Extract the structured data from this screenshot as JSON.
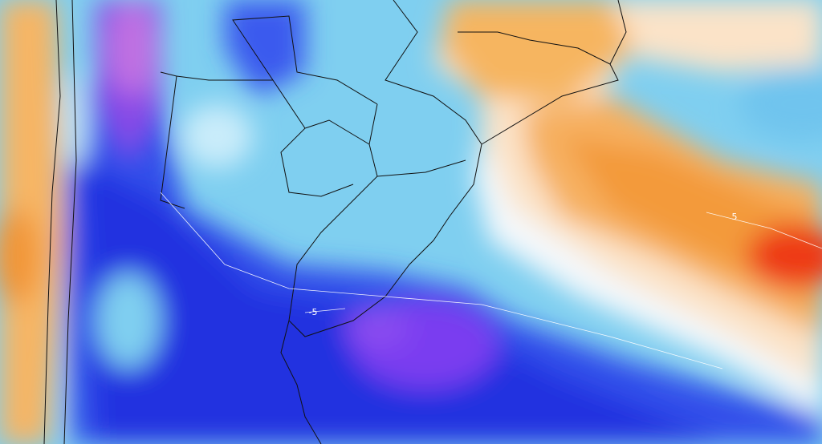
{
  "contour_labels": [
    "5",
    "-5"
  ]
}
